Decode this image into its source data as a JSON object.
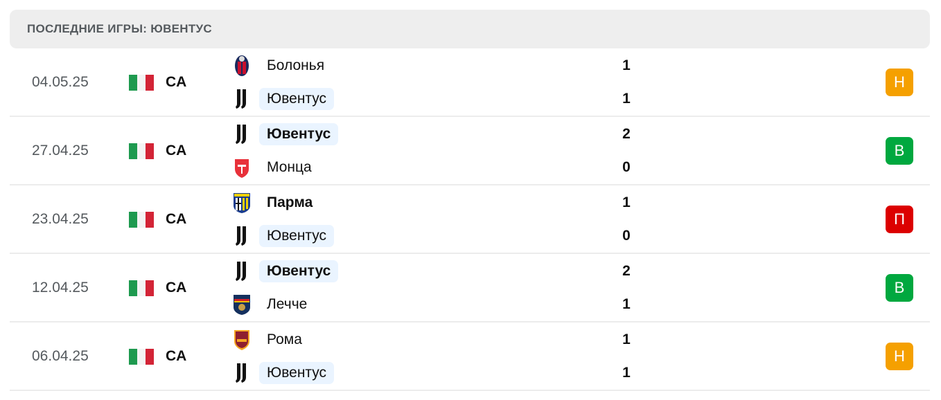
{
  "header": {
    "title": "ПОСЛЕДНИЕ ИГРЫ: ЮВЕНТУС"
  },
  "colors": {
    "draw": "#f5a000",
    "win": "#00a83f",
    "loss": "#dc0000",
    "highlight": "#eaf4ff",
    "flag_green": "#1e9a4f",
    "flag_white": "#f4f4f4",
    "flag_red": "#d32436"
  },
  "matches": [
    {
      "date": "04.05.25",
      "league": "CA",
      "home": {
        "name": "Болонья",
        "logo": "bologna-crest",
        "score": "1",
        "winner": false,
        "highlight": false
      },
      "away": {
        "name": "Ювентус",
        "logo": "juventus-crest",
        "score": "1",
        "winner": false,
        "highlight": true
      },
      "result": "Н",
      "result_type": "draw"
    },
    {
      "date": "27.04.25",
      "league": "CA",
      "home": {
        "name": "Ювентус",
        "logo": "juventus-crest",
        "score": "2",
        "winner": true,
        "highlight": true
      },
      "away": {
        "name": "Монца",
        "logo": "monza-crest",
        "score": "0",
        "winner": false,
        "highlight": false
      },
      "result": "В",
      "result_type": "win"
    },
    {
      "date": "23.04.25",
      "league": "CA",
      "home": {
        "name": "Парма",
        "logo": "parma-crest",
        "score": "1",
        "winner": true,
        "highlight": false
      },
      "away": {
        "name": "Ювентус",
        "logo": "juventus-crest",
        "score": "0",
        "winner": false,
        "highlight": true
      },
      "result": "П",
      "result_type": "loss"
    },
    {
      "date": "12.04.25",
      "league": "CA",
      "home": {
        "name": "Ювентус",
        "logo": "juventus-crest",
        "score": "2",
        "winner": true,
        "highlight": true
      },
      "away": {
        "name": "Лечче",
        "logo": "lecce-crest",
        "score": "1",
        "winner": false,
        "highlight": false
      },
      "result": "В",
      "result_type": "win"
    },
    {
      "date": "06.04.25",
      "league": "CA",
      "home": {
        "name": "Рома",
        "logo": "roma-crest",
        "score": "1",
        "winner": false,
        "highlight": false
      },
      "away": {
        "name": "Ювентус",
        "logo": "juventus-crest",
        "score": "1",
        "winner": false,
        "highlight": true
      },
      "result": "Н",
      "result_type": "draw"
    }
  ]
}
